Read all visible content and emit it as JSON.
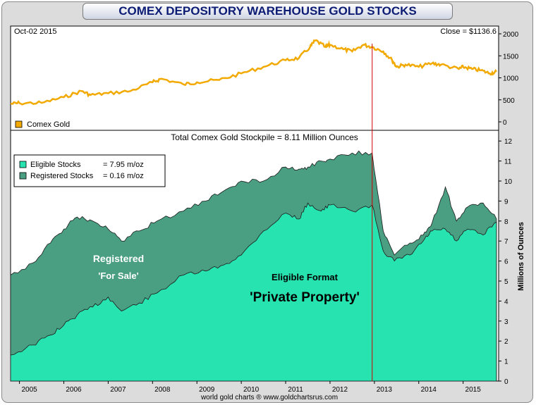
{
  "title": "COMEX DEPOSITORY WAREHOUSE GOLD STOCKS",
  "top_panel": {
    "date_label": "Oct-02  2015",
    "close_label": "Close = $1136.6",
    "legend_label": "Comex Gold",
    "y_ticks": [
      "2000",
      "1500",
      "1000",
      "500",
      "0"
    ]
  },
  "bottom_panel": {
    "header": "Total Comex Gold Stockpile = 8.11 Million Ounces",
    "legend": [
      {
        "label": "Eligible Stocks",
        "value": "= 7.95 m/oz"
      },
      {
        "label": "Registered Stocks",
        "value": "= 0.16 m/oz"
      }
    ],
    "annotations": {
      "registered_1": "Registered",
      "registered_2": "'For Sale'",
      "eligible_1": "Eligible Format",
      "eligible_2": "'Private Property'"
    },
    "y_ticks": [
      "12",
      "11",
      "10",
      "9",
      "8",
      "7",
      "6",
      "5",
      "4",
      "3",
      "2",
      "1",
      "0"
    ],
    "ylabel": "Millions of Ounces"
  },
  "x_ticks": [
    "2005",
    "2006",
    "2007",
    "2008",
    "2009",
    "2010",
    "2011",
    "2012",
    "2013",
    "2014",
    "2015"
  ],
  "footer": "world gold charts ® www.goldchartsrus.com",
  "colors": {
    "gold_line": "#f2a900",
    "eligible": "#27e3b0",
    "registered": "#4a9e82",
    "marker": "#cc0000",
    "title_text": "#0d1c74"
  },
  "chart_data": [
    {
      "type": "line",
      "series": [
        {
          "name": "Comex Gold"
        }
      ],
      "x": [
        2004.8,
        2005.0,
        2005.5,
        2006.0,
        2006.4,
        2006.6,
        2007.0,
        2007.5,
        2008.0,
        2008.2,
        2008.7,
        2009.0,
        2009.5,
        2010.0,
        2010.5,
        2011.0,
        2011.3,
        2011.55,
        2011.67,
        2011.9,
        2012.0,
        2012.3,
        2012.5,
        2012.75,
        2012.95,
        2013.2,
        2013.4,
        2013.5,
        2013.7,
        2014.0,
        2014.3,
        2014.5,
        2014.9,
        2015.0,
        2015.2,
        2015.4,
        2015.6,
        2015.75
      ],
      "y": [
        410,
        425,
        430,
        560,
        700,
        610,
        650,
        700,
        900,
        980,
        850,
        900,
        950,
        1100,
        1250,
        1400,
        1450,
        1700,
        1850,
        1700,
        1750,
        1650,
        1600,
        1750,
        1700,
        1600,
        1400,
        1250,
        1300,
        1250,
        1330,
        1300,
        1200,
        1250,
        1200,
        1170,
        1100,
        1136.6
      ],
      "ylim": [
        -100,
        2100
      ],
      "xlim": [
        2004.8,
        2015.8
      ]
    },
    {
      "type": "area",
      "series": [
        {
          "name": "Eligible Stocks",
          "values": [
            1.3,
            1.8,
            2.3,
            2.8,
            3.3,
            3.7,
            4.2,
            3.5,
            3.9,
            4.4,
            5.3,
            5.5,
            5.8,
            6.3,
            7.5,
            8.4,
            8.1,
            8.9,
            8.5,
            8.8,
            8.5,
            8.8,
            6.5,
            6.0,
            6.3,
            7.0,
            7.5,
            7.6,
            7.0,
            7.6,
            7.3,
            7.95
          ]
        },
        {
          "name": "Registered Stocks",
          "values": [
            4.0,
            4.1,
            4.6,
            4.8,
            4.9,
            4.3,
            3.4,
            3.5,
            3.6,
            3.6,
            3.2,
            3.5,
            3.7,
            3.7,
            2.5,
            2.3,
            2.5,
            1.8,
            2.5,
            2.3,
            2.9,
            2.6,
            1.0,
            0.3,
            0.6,
            0.3,
            0.4,
            2.1,
            1.0,
            1.1,
            1.6,
            0.16
          ]
        }
      ],
      "x": [
        2004.8,
        2005.3,
        2005.7,
        2006.0,
        2006.3,
        2006.65,
        2007.0,
        2007.3,
        2007.7,
        2008.1,
        2008.7,
        2009.2,
        2009.6,
        2010.0,
        2010.5,
        2011.0,
        2011.3,
        2011.5,
        2011.8,
        2012.0,
        2012.5,
        2012.95,
        2013.2,
        2013.45,
        2013.8,
        2014.1,
        2014.3,
        2014.6,
        2014.85,
        2015.1,
        2015.45,
        2015.75
      ],
      "ylim": [
        0,
        12.5
      ],
      "xlim": [
        2004.8,
        2015.8
      ],
      "ylabel": "Millions of Ounces",
      "title": "Total Comex Gold Stockpile = 8.11 Million Ounces",
      "marker_x": 2012.95,
      "legend_position": "top-left"
    }
  ]
}
